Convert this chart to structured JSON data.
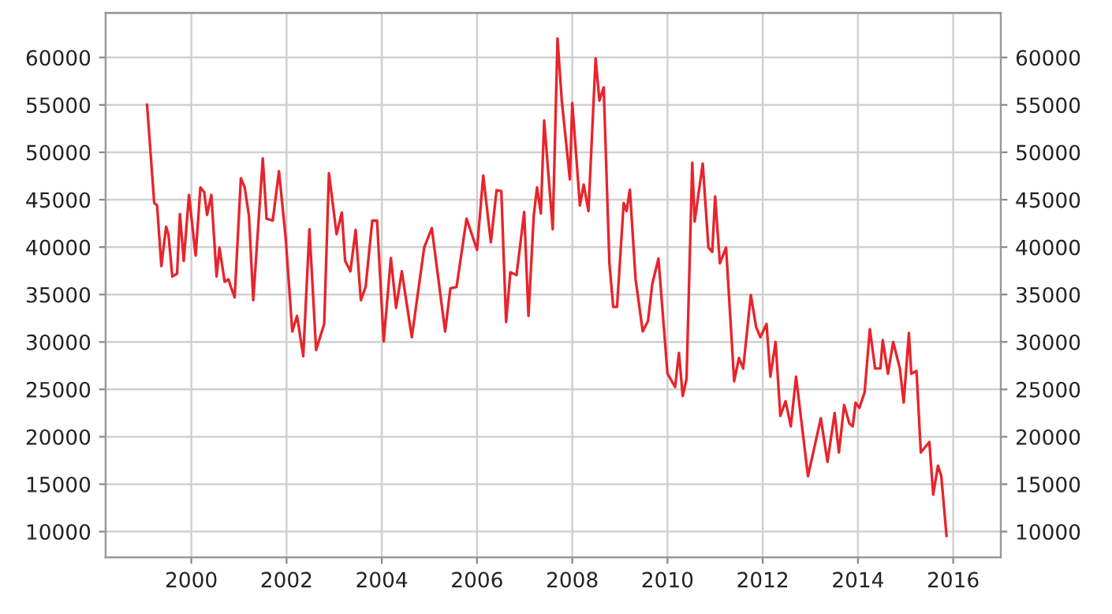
{
  "chart_data": {
    "type": "line",
    "xlim": [
      1998.2,
      2017.0
    ],
    "xticks": [
      2000,
      2002,
      2004,
      2006,
      2008,
      2010,
      2012,
      2014,
      2016
    ],
    "ylim": [
      7300,
      64700
    ],
    "yticks": [
      10000,
      15000,
      20000,
      25000,
      30000,
      35000,
      40000,
      45000,
      50000,
      55000,
      60000
    ],
    "y2lim": [
      7300,
      64700
    ],
    "y2ticks": [
      10000,
      15000,
      20000,
      25000,
      30000,
      35000,
      40000,
      45000,
      50000,
      55000,
      60000
    ],
    "grid": true,
    "series": [
      {
        "color": "#e8242b",
        "x": [
          1999.07,
          1999.22,
          1999.28,
          1999.37,
          1999.47,
          1999.52,
          1999.6,
          1999.7,
          1999.76,
          1999.84,
          1999.95,
          2000.09,
          2000.19,
          2000.27,
          2000.33,
          2000.42,
          2000.53,
          2000.59,
          2000.7,
          2000.78,
          2000.83,
          2000.91,
          2001.04,
          2001.12,
          2001.21,
          2001.3,
          2001.5,
          2001.58,
          2001.71,
          2001.84,
          2001.98,
          2002.12,
          2002.22,
          2002.35,
          2002.48,
          2002.62,
          2002.79,
          2002.89,
          2003.05,
          2003.16,
          2003.23,
          2003.34,
          2003.45,
          2003.56,
          2003.66,
          2003.8,
          2003.9,
          2004.04,
          2004.19,
          2004.3,
          2004.42,
          2004.63,
          2004.89,
          2005.05,
          2005.33,
          2005.44,
          2005.57,
          2005.78,
          2006.0,
          2006.13,
          2006.29,
          2006.41,
          2006.51,
          2006.61,
          2006.7,
          2006.83,
          2006.99,
          2007.08,
          2007.19,
          2007.26,
          2007.34,
          2007.41,
          2007.59,
          2007.69,
          2007.78,
          2007.95,
          2008.0,
          2008.16,
          2008.24,
          2008.34,
          2008.49,
          2008.57,
          2008.66,
          2008.78,
          2008.86,
          2008.94,
          2009.08,
          2009.14,
          2009.21,
          2009.33,
          2009.48,
          2009.59,
          2009.68,
          2009.81,
          2010.0,
          2010.16,
          2010.24,
          2010.32,
          2010.4,
          2010.52,
          2010.57,
          2010.74,
          2010.86,
          2010.94,
          2011.0,
          2011.1,
          2011.23,
          2011.4,
          2011.5,
          2011.59,
          2011.75,
          2011.86,
          2011.95,
          2012.08,
          2012.16,
          2012.27,
          2012.37,
          2012.48,
          2012.59,
          2012.7,
          2012.95,
          2013.22,
          2013.36,
          2013.51,
          2013.6,
          2013.71,
          2013.82,
          2013.89,
          2013.95,
          2014.03,
          2014.14,
          2014.25,
          2014.36,
          2014.47,
          2014.52,
          2014.63,
          2014.74,
          2014.88,
          2014.96,
          2015.07,
          2015.12,
          2015.23,
          2015.32,
          2015.5,
          2015.58,
          2015.68,
          2015.75,
          2015.86
        ],
        "values": [
          55000,
          44650,
          44400,
          38000,
          42150,
          41300,
          36900,
          37200,
          43500,
          38550,
          45500,
          39100,
          46300,
          45800,
          43400,
          45500,
          36900,
          39950,
          36350,
          36600,
          35800,
          34700,
          47250,
          46300,
          43300,
          34400,
          49350,
          43000,
          42800,
          48000,
          41050,
          31100,
          32750,
          28500,
          41900,
          29150,
          31900,
          47800,
          41350,
          43650,
          38550,
          37450,
          41800,
          34400,
          35800,
          42800,
          42800,
          30050,
          38850,
          33600,
          37450,
          30500,
          39950,
          42000,
          31100,
          35650,
          35800,
          43000,
          39700,
          47550,
          40500,
          46000,
          45900,
          32100,
          37350,
          37050,
          43700,
          32750,
          43250,
          46300,
          43550,
          53350,
          41900,
          62000,
          55450,
          47150,
          55200,
          44400,
          46600,
          43800,
          59900,
          55450,
          56850,
          38300,
          33700,
          33700,
          44650,
          43800,
          46050,
          36600,
          31100,
          32200,
          36100,
          38800,
          26650,
          25250,
          28850,
          24300,
          26100,
          48900,
          42700,
          48800,
          39950,
          39500,
          45350,
          38300,
          39950,
          25850,
          28300,
          27200,
          34950,
          31600,
          30500,
          31900,
          26350,
          30000,
          22200,
          23750,
          21100,
          26350,
          15850,
          21950,
          17350,
          22500,
          18350,
          23350,
          21400,
          21100,
          23600,
          23050,
          24700,
          31350,
          27200,
          27200,
          30200,
          26650,
          30000,
          27200,
          23600,
          30950,
          26650,
          26950,
          18350,
          19450,
          13900,
          16950,
          15850,
          9550
        ]
      }
    ]
  }
}
